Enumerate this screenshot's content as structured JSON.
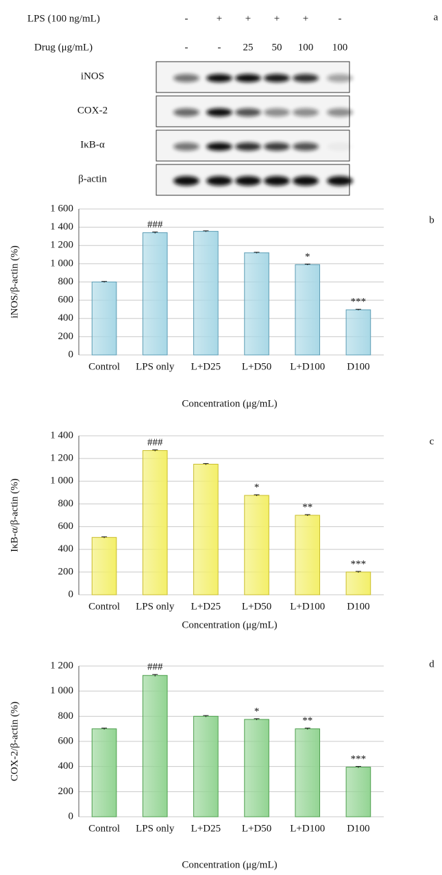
{
  "blot": {
    "label": "a",
    "rows": [
      {
        "label": "LPS (100 ng/mL)",
        "values": [
          "-",
          "+",
          "+",
          "+",
          "+",
          "-"
        ]
      },
      {
        "label": "Drug (μg/mL)",
        "values": [
          "-",
          "-",
          "25",
          "50",
          "100",
          "100"
        ]
      }
    ],
    "bands": [
      "iNOS",
      "COX-2",
      "IκB-α",
      "β-actin"
    ]
  },
  "chart_data": [
    {
      "type": "bar",
      "label": "b",
      "ylabel": "iNOS/β-actin (%)",
      "xlabel": "Concentration (μg/mL)",
      "categories": [
        "Control",
        "LPS only",
        "L+D25",
        "L+D50",
        "L+D100",
        "D100"
      ],
      "values": [
        800,
        1340,
        1355,
        1120,
        990,
        495
      ],
      "errors": [
        6,
        8,
        6,
        6,
        6,
        6
      ],
      "annotations": [
        null,
        "###",
        null,
        null,
        "*",
        "***"
      ],
      "color": "#a9d8e6",
      "edge_color": "#5a9cb4",
      "ylim": [
        0,
        1600
      ],
      "yticks": [
        0,
        200,
        400,
        600,
        800,
        {
          "value": 1000,
          "label": "1 000"
        },
        {
          "value": 1200,
          "label": "1 200"
        },
        {
          "value": 1400,
          "label": "1 400"
        },
        {
          "value": 1600,
          "label": "1 600"
        }
      ],
      "grid": true
    },
    {
      "type": "bar",
      "label": "c",
      "ylabel": "IκB-α/β-actin (%)",
      "xlabel": "Concentration (μg/mL)",
      "categories": [
        "Control",
        "LPS only",
        "L+D25",
        "L+D50",
        "L+D100",
        "D100"
      ],
      "values": [
        505,
        1270,
        1150,
        875,
        700,
        200
      ],
      "errors": [
        6,
        6,
        6,
        6,
        6,
        6
      ],
      "annotations": [
        null,
        "###",
        null,
        "*",
        "**",
        "***"
      ],
      "color": "#f3ef6a",
      "edge_color": "#c9bd2a",
      "ylim": [
        0,
        1400
      ],
      "yticks": [
        0,
        200,
        400,
        600,
        800,
        {
          "value": 1000,
          "label": "1 000"
        },
        {
          "value": 1200,
          "label": "1 200"
        },
        {
          "value": 1400,
          "label": "1 400"
        }
      ],
      "grid": true
    },
    {
      "type": "bar",
      "label": "d",
      "ylabel": "COX-2/β-actin (%)",
      "xlabel": "Concentration (μg/mL)",
      "categories": [
        "Control",
        "LPS only",
        "L+D25",
        "L+D50",
        "L+D100",
        "D100"
      ],
      "values": [
        700,
        1125,
        800,
        775,
        700,
        395
      ],
      "errors": [
        6,
        8,
        6,
        6,
        6,
        6
      ],
      "annotations": [
        null,
        "###",
        null,
        "*",
        "**",
        "***"
      ],
      "color": "#93d493",
      "edge_color": "#4c9e4c",
      "ylim": [
        0,
        1200
      ],
      "yticks": [
        0,
        200,
        400,
        600,
        800,
        {
          "value": 1000,
          "label": "1 000"
        },
        {
          "value": 1200,
          "label": "1 200"
        }
      ],
      "grid": true
    }
  ]
}
